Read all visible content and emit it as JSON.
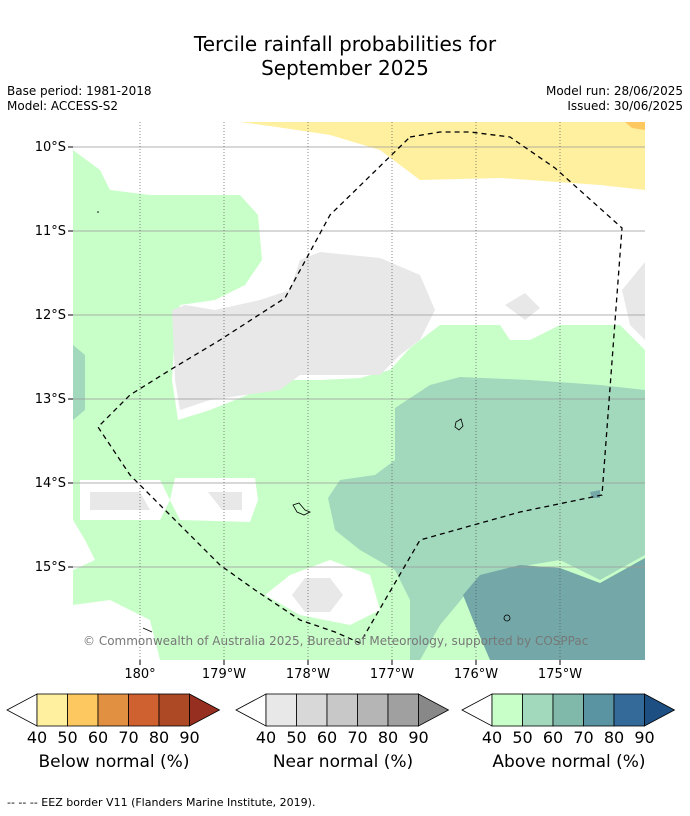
{
  "title_line1": "Tercile rainfall probabilities for",
  "title_line2": "September 2025",
  "meta": {
    "base_period": "Base period: 1981-2018",
    "model": "Model: ACCESS-S2",
    "model_run": "Model run: 28/06/2025",
    "issued": "Issued: 30/06/2025"
  },
  "lat_labels": [
    "10°S",
    "11°S",
    "12°S",
    "13°S",
    "14°S",
    "15°S"
  ],
  "lon_labels": [
    "180°",
    "179°W",
    "178°W",
    "177°W",
    "176°W",
    "175°W"
  ],
  "copyright": "© Commonwealth of Australia 2025, Bureau of Meteorology, supported by COSPPac",
  "legends": [
    {
      "caption": "Below normal (%)",
      "ticks": [
        "40",
        "50",
        "60",
        "70",
        "80",
        "90"
      ],
      "colors": [
        "#ffffff",
        "#fff0a0",
        "#fec860",
        "#e09040",
        "#cf6030",
        "#ad4a25",
        "#962f1f"
      ]
    },
    {
      "caption": "Near normal (%)",
      "ticks": [
        "40",
        "50",
        "60",
        "70",
        "80",
        "90"
      ],
      "colors": [
        "#ffffff",
        "#e8e8e8",
        "#d8d8d8",
        "#c8c8c8",
        "#b5b5b5",
        "#a0a0a0",
        "#888888"
      ]
    },
    {
      "caption": "Above normal (%)",
      "ticks": [
        "40",
        "50",
        "60",
        "70",
        "80",
        "90"
      ],
      "colors": [
        "#ffffff",
        "#c8ffc8",
        "#a2d8bc",
        "#80b8aa",
        "#5a93a2",
        "#336a9a",
        "#1e4f82"
      ]
    }
  ],
  "footnote": "--  --  -- EEZ border V11 (Flanders Marine Institute, 2019)."
}
